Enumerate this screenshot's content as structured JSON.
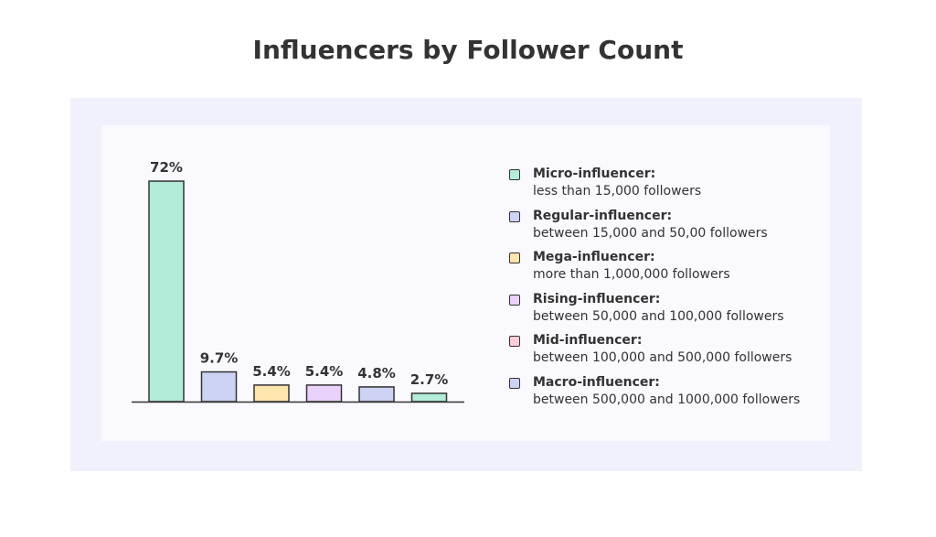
{
  "chart_data": {
    "type": "bar",
    "title": "Influencers by Follower Count",
    "categories": [
      "Micro-influencer",
      "Regular-influencer",
      "Mega-influencer",
      "Rising-influencer",
      "Mid-influencer",
      "Macro-influencer"
    ],
    "values": [
      72,
      9.7,
      5.4,
      5.4,
      4.8,
      2.7
    ],
    "value_labels": [
      "72%",
      "9.7%",
      "5.4%",
      "5.4%",
      "4.8%",
      "2.7%"
    ],
    "bar_colors": [
      "#b3ecd9",
      "#ccd3f5",
      "#fde6ae",
      "#e9d2fb",
      "#ccd3f5",
      "#b3ecd9"
    ],
    "ylim": [
      0,
      72
    ],
    "grid": false,
    "legend_placement": "right",
    "legend": [
      {
        "name": "Micro-influencer:",
        "desc": "less than 15,000 followers",
        "color": "#b3ecd9"
      },
      {
        "name": "Regular-influencer:",
        "desc": "between 15,000 and 50,00 followers",
        "color": "#ccd3f5"
      },
      {
        "name": "Mega-influencer:",
        "desc": "more than 1,000,000 followers",
        "color": "#fde6ae"
      },
      {
        "name": "Rising-influencer:",
        "desc": "between 50,000 and 100,000 followers",
        "color": "#e9d2fb"
      },
      {
        "name": "Mid-influencer:",
        "desc": "between 100,000 and 500,000 followers",
        "color": "#fbcdd8"
      },
      {
        "name": "Macro-influencer:",
        "desc": "between 500,000 and 1000,000 followers",
        "color": "#ccd3f5"
      }
    ]
  },
  "colors": {
    "outer_panel": "#f1f1fd",
    "inner_panel": "#f9f9fe",
    "text": "#333333",
    "stroke": "#333333"
  }
}
